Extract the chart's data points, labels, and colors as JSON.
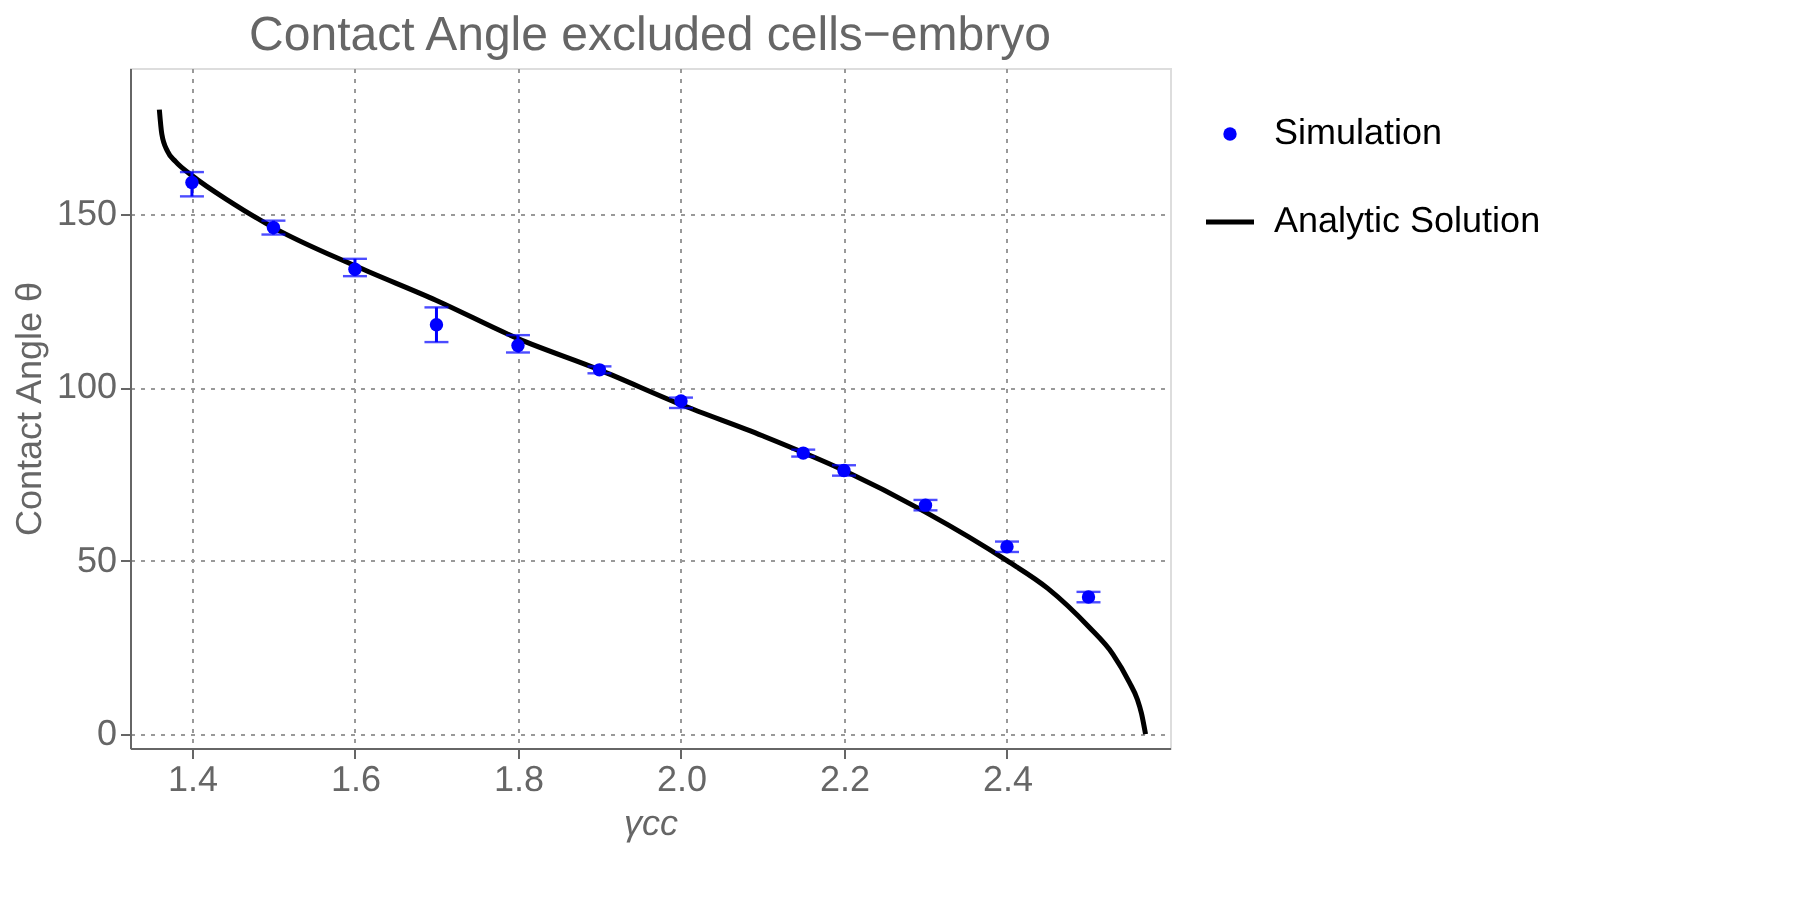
{
  "chart_data": {
    "type": "scatter",
    "title": "Contact Angle excluded cells−embryo",
    "xlabel": "γcc",
    "ylabel": "Contact Angle θ",
    "xlim": [
      1.324,
      2.6
    ],
    "ylim": [
      -4,
      192
    ],
    "xticks": [
      {
        "value": 1.4,
        "label": "1.4"
      },
      {
        "value": 1.6,
        "label": "1.6"
      },
      {
        "value": 1.8,
        "label": "1.8"
      },
      {
        "value": 2.0,
        "label": "2.0"
      },
      {
        "value": 2.2,
        "label": "2.2"
      },
      {
        "value": 2.4,
        "label": "2.4"
      }
    ],
    "yticks": [
      0,
      50,
      100,
      150
    ],
    "grid": true,
    "legend": "right",
    "marker": "circle",
    "series": [
      {
        "name": "Simulation",
        "color": "#0000ff",
        "x": [
          1.4,
          1.5,
          1.6,
          1.7,
          1.8,
          1.9,
          2.0,
          2.15,
          2.2,
          2.3,
          2.4,
          2.5
        ],
        "values": [
          159,
          146,
          134,
          118,
          112,
          105,
          96,
          81,
          76,
          66,
          54,
          39.5
        ],
        "errors": [
          [
            155,
            162
          ],
          [
            144,
            148
          ],
          [
            132,
            137
          ],
          [
            113,
            123
          ],
          [
            110,
            115
          ],
          [
            104,
            106
          ],
          [
            94,
            97
          ],
          [
            80,
            82
          ],
          [
            74.5,
            77.5
          ],
          [
            64.5,
            67.5
          ],
          [
            52.5,
            55.5
          ],
          [
            38,
            41
          ]
        ]
      },
      {
        "name": "Analytic Solution",
        "type": "line",
        "color": "#000000",
        "marker": "none",
        "x": [
          1.36,
          1.363,
          1.37,
          1.38,
          1.4,
          1.45,
          1.5,
          1.6,
          1.7,
          1.8,
          1.9,
          2.0,
          2.1,
          2.2,
          2.3,
          2.4,
          2.45,
          2.5,
          2.53,
          2.55,
          2.56,
          2.565,
          2.57
        ],
        "values": [
          180,
          173,
          168,
          165,
          161,
          153,
          146,
          135,
          125,
          114,
          105,
          95,
          86,
          76,
          64,
          50,
          42,
          31,
          23,
          15,
          10,
          6,
          0
        ]
      }
    ]
  }
}
